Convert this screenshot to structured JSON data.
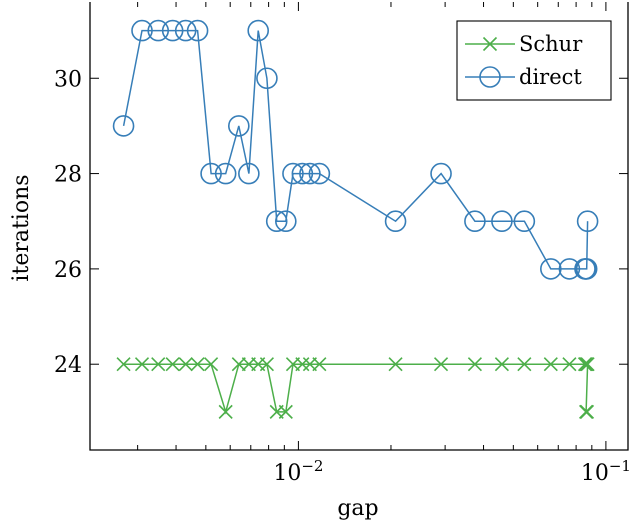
{
  "chart_data": {
    "type": "line",
    "xlabel": "gap",
    "ylabel": "iterations",
    "xscale": "log",
    "xlim": [
      0.0021,
      0.118
    ],
    "ylim": [
      22.2,
      31.6
    ],
    "grid": false,
    "legend_position": "top-right",
    "x_tick_labels": [
      {
        "value": 0.01,
        "base": "10",
        "exp": "−2"
      },
      {
        "value": 0.1,
        "base": "10",
        "exp": "−1"
      }
    ],
    "y_ticks": [
      24,
      26,
      28,
      30
    ],
    "series": [
      {
        "name": "Schur",
        "color": "#4daf4a",
        "marker": "x",
        "x": [
          0.0027,
          0.0031,
          0.0035,
          0.0039,
          0.0043,
          0.0047,
          0.0052,
          0.0058,
          0.0064,
          0.0069,
          0.0074,
          0.0079,
          0.0085,
          0.0091,
          0.0096,
          0.0103,
          0.0109,
          0.0117,
          0.0207,
          0.0291,
          0.0375,
          0.0459,
          0.0543,
          0.0662,
          0.0761,
          0.0855,
          0.086,
          0.0866,
          0.0872,
          0.0862,
          0.0868
        ],
        "y": [
          24,
          24,
          24,
          24,
          24,
          24,
          24,
          23,
          24,
          24,
          24,
          24,
          23,
          23,
          24,
          24,
          24,
          24,
          24,
          24,
          24,
          24,
          24,
          24,
          24,
          24,
          24,
          24,
          24,
          23,
          23
        ]
      },
      {
        "name": "direct",
        "color": "#377eb8",
        "marker": "o",
        "x": [
          0.0027,
          0.0031,
          0.0035,
          0.0039,
          0.0043,
          0.0047,
          0.0052,
          0.0058,
          0.0064,
          0.0069,
          0.0074,
          0.0079,
          0.0085,
          0.0091,
          0.0096,
          0.0103,
          0.0109,
          0.0117,
          0.0207,
          0.0291,
          0.0375,
          0.0459,
          0.0543,
          0.0662,
          0.0761,
          0.0855,
          0.086,
          0.0866,
          0.0872
        ],
        "y": [
          29,
          31,
          31,
          31,
          31,
          31,
          28,
          28,
          29,
          28,
          31,
          30,
          27,
          27,
          28,
          28,
          28,
          28,
          27,
          28,
          27,
          27,
          27,
          26,
          26,
          26,
          26,
          26,
          27
        ]
      }
    ]
  }
}
